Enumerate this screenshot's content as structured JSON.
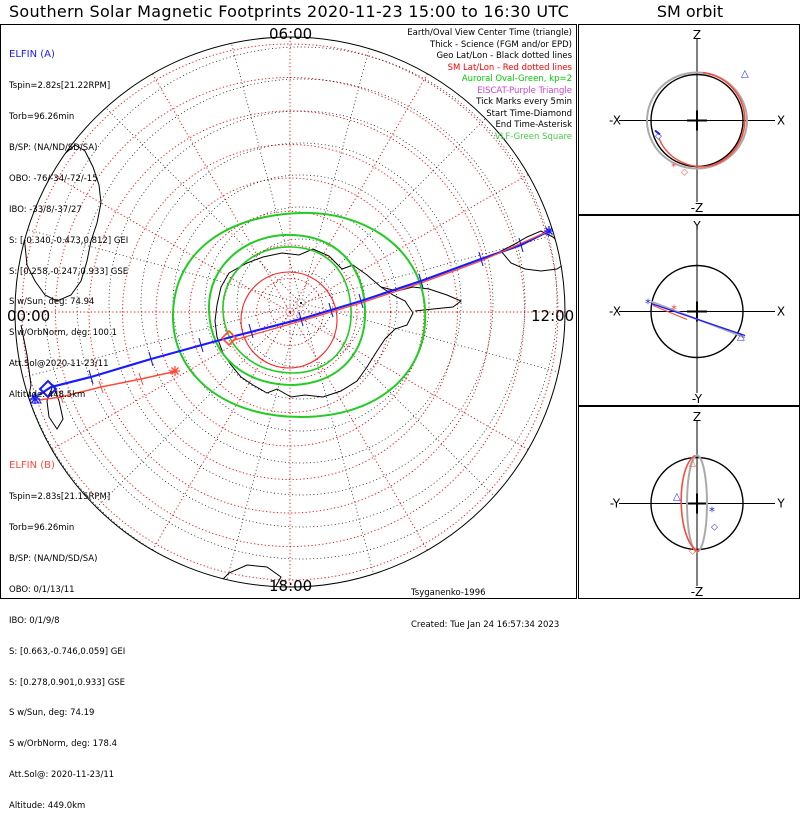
{
  "title": "Southern Solar Magnetic Footprints 2020-11-23 15:00 to 16:30 UTC",
  "orbit_title": "SM orbit",
  "hour_labels": {
    "top": "06:00",
    "left": "00:00",
    "right": "12:00",
    "bottom": "18:00"
  },
  "elfin_a": {
    "name": "ELFIN (A)",
    "color": "#1a1aff",
    "lines": [
      "Tspin=2.82s[21.22RPM]",
      "Torb=96.26min",
      "B/SP: (NA/ND/SD/SA)",
      "OBO: -76/-34/-72/-15",
      "IBO: -33/8/-37/27",
      "S: [-0.340,-0.473,0.812] GEI",
      "S: [0.258,-0.247,0.933] GSE",
      "S w/Sun, deg: 74.94",
      "S w/OrbNorm, deg: 100.1",
      "Att.Sol@2020-11-23/11",
      "Altitude: 448.5km"
    ]
  },
  "elfin_b": {
    "name": "ELFIN (B)",
    "color": "#ff4a3a",
    "lines": [
      "Tspin=2.83s[21.15RPM]",
      "Torb=96.26min",
      "B/SP: (NA/ND/SD/SA)",
      "OBO: 0/1/13/11",
      "IBO: 0/1/9/8",
      "S: [0.663,-0.746,0.059] GEI",
      "S: [0.278,0.901,0.933] GSE",
      "S w/Sun, deg: 74.19",
      "S w/OrbNorm, deg: 178.4",
      "Att.Sol@: 2020-11-23/11",
      "Altitude: 449.0km"
    ]
  },
  "legend": [
    {
      "text": "Earth/Oval View Center Time (triangle)",
      "color": "#000000"
    },
    {
      "text": "Thick - Science (FGM and/or EPD)",
      "color": "#000000"
    },
    {
      "text": "Geo Lat/Lon - Black dotted lines",
      "color": "#000000"
    },
    {
      "text": "SM Lat/Lon - Red dotted lines",
      "color": "#ff0000"
    },
    {
      "text": "Auroral Oval-Green, kp=2",
      "color": "#00cc00"
    },
    {
      "text": "EISCAT-Purple Triangle",
      "color": "#cc44cc"
    },
    {
      "text": "Tick Marks every 5min",
      "color": "#000000"
    },
    {
      "text": "Start Time-Diamond",
      "color": "#000000"
    },
    {
      "text": "End Time-Asterisk",
      "color": "#000000"
    },
    {
      "text": "VLF-Green Square",
      "color": "#44cc44"
    }
  ],
  "credit": {
    "author": "Tsyganenko-1996",
    "created": "Created: Tue Jan 24 16:57:34 2023"
  },
  "orbit_panels": [
    {
      "top": "Z",
      "bottom": "-Z",
      "left": "-X",
      "right": "X"
    },
    {
      "top": "Y",
      "bottom": "-Y",
      "left": "-X",
      "right": "X"
    },
    {
      "top": "Z",
      "bottom": "-Z",
      "left": "-Y",
      "right": "Y"
    }
  ],
  "colors": {
    "elfin_a": "#1a1aff",
    "elfin_b": "#ff4a3a",
    "sm_grid": "#ff0000",
    "geo_grid": "#000000",
    "auroral_oval": "#22cc22",
    "orbit_gray": "#aaaaaa"
  },
  "auroral_oval_kp": 2
}
